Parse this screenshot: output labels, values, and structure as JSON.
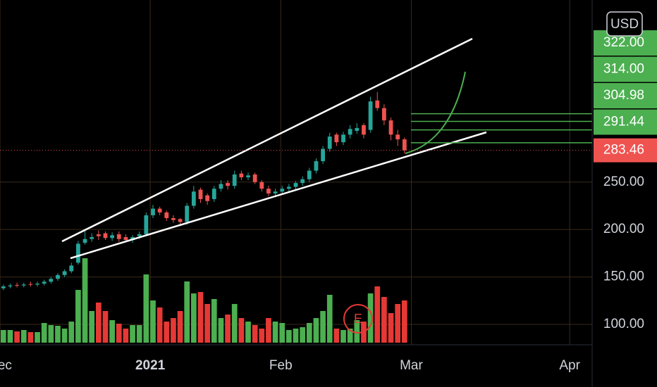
{
  "chart_data": {
    "type": "candlestick",
    "currency": "USD",
    "xlim": [
      -0.5,
      86.6
    ],
    "xticks": [
      {
        "value": -0.5,
        "label": "Dec"
      },
      {
        "value": 21.6,
        "label": "2021"
      },
      {
        "value": 40.8,
        "label": "Feb"
      },
      {
        "value": 60.0,
        "label": "Mar"
      },
      {
        "value": 83.3,
        "label": "Apr"
      }
    ],
    "ylim": [
      78.5,
      441.9
    ],
    "yticks": [
      {
        "value": 100,
        "label": "100.00"
      },
      {
        "value": 150,
        "label": "150.00"
      },
      {
        "value": 200,
        "label": "200.00"
      },
      {
        "value": 250,
        "label": "250.00"
      }
    ],
    "grid": true,
    "up_color": "#26a69a",
    "down_color": "#ef5350",
    "volume_up_color": "#4caf50",
    "volume_down_color": "#e53935",
    "volume_lim": [
      0,
      400
    ],
    "open": [
      138,
      140,
      141.5,
      141,
      142.5,
      142,
      143,
      145,
      148,
      152,
      156,
      165,
      186,
      190,
      195,
      196,
      191,
      195,
      192,
      189,
      193,
      195,
      215,
      222,
      218,
      212,
      211,
      208,
      225,
      242,
      236,
      232,
      243,
      249,
      246,
      259,
      255,
      258,
      250,
      243,
      238,
      240,
      243,
      245,
      249,
      253,
      262,
      272,
      285,
      300,
      292,
      300,
      304,
      310,
      305,
      336,
      328,
      315,
      300,
      295
    ],
    "high": [
      142,
      143,
      144,
      144,
      145,
      145,
      147,
      150,
      154,
      158,
      165,
      188,
      200,
      196,
      199,
      198,
      197,
      198,
      195,
      194,
      198,
      218,
      226,
      224,
      220,
      215,
      212,
      228,
      246,
      244,
      238,
      246,
      252,
      252,
      262,
      262,
      260,
      260,
      252,
      246,
      243,
      246,
      248,
      251,
      256,
      265,
      275,
      288,
      302,
      302,
      303,
      310,
      312,
      312,
      340,
      345,
      332,
      318,
      305,
      297
    ],
    "low": [
      136,
      138,
      139,
      139,
      140,
      140,
      141,
      143,
      146,
      150,
      154,
      163,
      184,
      187,
      189,
      189,
      188,
      187,
      187,
      186,
      190,
      193,
      212,
      215,
      209,
      207,
      205,
      205,
      222,
      228,
      226,
      229,
      240,
      242,
      243,
      252,
      252,
      248,
      240,
      235,
      234,
      237,
      240,
      242,
      246,
      250,
      259,
      269,
      282,
      288,
      289,
      296,
      301,
      296,
      302,
      325,
      310,
      294,
      288,
      280
    ],
    "close": [
      140,
      141,
      141,
      142,
      142,
      143,
      145,
      148,
      152,
      156,
      162,
      185,
      190,
      192,
      193,
      191,
      194,
      190,
      189,
      192,
      195,
      215,
      222,
      218,
      212,
      210,
      208,
      225,
      240,
      232,
      230,
      243,
      248,
      246,
      258,
      255,
      257,
      250,
      243,
      238,
      240,
      243,
      245,
      249,
      253,
      262,
      272,
      285,
      298,
      292,
      300,
      306,
      307,
      300,
      335,
      328,
      315,
      300,
      295,
      283.46
    ],
    "volume": [
      18,
      18,
      16,
      18,
      15,
      15,
      28,
      25,
      24,
      20,
      30,
      75,
      120,
      45,
      57,
      45,
      32,
      27,
      20,
      25,
      25,
      97,
      60,
      50,
      30,
      35,
      45,
      87,
      70,
      72,
      55,
      62,
      35,
      40,
      55,
      35,
      30,
      25,
      20,
      35,
      30,
      28,
      18,
      20,
      22,
      28,
      35,
      45,
      68,
      20,
      18,
      20,
      32,
      30,
      70,
      80,
      65,
      42,
      55,
      60
    ],
    "price_lines": [
      {
        "value": 322.0,
        "label": "322.00"
      },
      {
        "value": 314.0,
        "label": "314.00"
      },
      {
        "value": 304.98,
        "label": "304.98"
      },
      {
        "value": 291.44,
        "label": "291.44"
      }
    ],
    "last_price": {
      "value": 283.46,
      "label": "283.46"
    },
    "event_marker": "E"
  }
}
